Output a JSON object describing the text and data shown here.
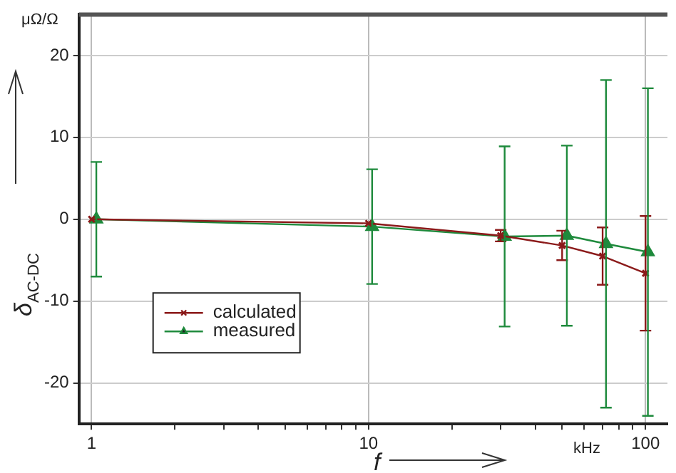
{
  "chart_data": {
    "type": "line",
    "xlabel": "f",
    "ylabel": "δ$_{AC-DC}$",
    "annotations": [
      "μΩ/Ω",
      "kHz"
    ],
    "log": "x",
    "xlim": [
      0.9,
      120
    ],
    "ylim": [
      -25,
      25
    ],
    "xticks": [
      1,
      {
        "value": 2,
        "label": null
      },
      {
        "value": 3,
        "label": null
      },
      {
        "value": 4,
        "label": null
      },
      {
        "value": 5,
        "label": null
      },
      {
        "value": 6,
        "label": null
      },
      {
        "value": 7,
        "label": null
      },
      {
        "value": 8,
        "label": null
      },
      {
        "value": 9,
        "label": null
      },
      10,
      {
        "value": 20,
        "label": null
      },
      {
        "value": 30,
        "label": null
      },
      {
        "value": 40,
        "label": null
      },
      {
        "value": 50,
        "label": null
      },
      {
        "value": 60,
        "label": null
      },
      {
        "value": 70,
        "label": null
      },
      {
        "value": 80,
        "label": null
      },
      {
        "value": 90,
        "label": null
      },
      100
    ],
    "yticks": [
      -20,
      -10,
      0,
      10,
      20
    ],
    "grid": true,
    "legend": "bottom left",
    "line_style": "solid",
    "series": [
      {
        "name": "calculated",
        "color": "#8b1a1a",
        "marker": "cross",
        "x": [
          1,
          10,
          30,
          50,
          70,
          100
        ],
        "values": [
          0,
          -0.5,
          -2,
          -3.2,
          -4.5,
          -6.6
        ],
        "errors": [
          null,
          null,
          0.7,
          1.8,
          3.5,
          7
        ]
      },
      {
        "name": "measured",
        "color": "#1e8a3c",
        "marker": "triangle",
        "x": [
          1.04,
          10.3,
          31,
          52,
          72,
          102
        ],
        "values": [
          0,
          -0.9,
          -2.1,
          -2,
          -3,
          -4
        ],
        "errors": [
          7,
          7,
          11,
          11,
          20,
          20
        ]
      }
    ]
  }
}
